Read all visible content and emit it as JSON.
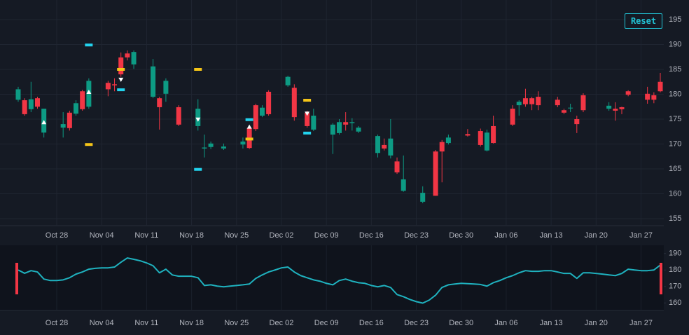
{
  "controls": {
    "reset": "Reset"
  },
  "chart_data": {
    "type": "candlestick",
    "x": [
      "Oct 22",
      "Oct 23",
      "Oct 24",
      "Oct 25",
      "Oct 26",
      "Oct 27",
      "Oct 28",
      "Oct 29",
      "Oct 30",
      "Oct 31",
      "Nov 01",
      "Nov 02",
      "Nov 03",
      "Nov 04",
      "Nov 05",
      "Nov 06",
      "Nov 07",
      "Nov 08",
      "Nov 09",
      "Nov 10",
      "Nov 11",
      "Nov 12",
      "Nov 13",
      "Nov 14",
      "Nov 15",
      "Nov 16",
      "Nov 17",
      "Nov 18",
      "Nov 19",
      "Nov 20",
      "Nov 21",
      "Nov 22",
      "Nov 23",
      "Nov 24",
      "Nov 25",
      "Nov 26",
      "Nov 27",
      "Nov 28",
      "Nov 29",
      "Nov 30",
      "Dec 01",
      "Dec 02",
      "Dec 03",
      "Dec 04",
      "Dec 05",
      "Dec 06",
      "Dec 07",
      "Dec 08",
      "Dec 09",
      "Dec 10",
      "Dec 11",
      "Dec 12",
      "Dec 13",
      "Dec 14",
      "Dec 15",
      "Dec 16",
      "Dec 17",
      "Dec 18",
      "Dec 19",
      "Dec 20",
      "Dec 21",
      "Dec 22",
      "Dec 23",
      "Dec 24",
      "Dec 25",
      "Dec 26",
      "Dec 27",
      "Dec 28",
      "Dec 29",
      "Dec 30",
      "Dec 31",
      "Jan 01",
      "Jan 02",
      "Jan 03",
      "Jan 04",
      "Jan 05",
      "Jan 06",
      "Jan 07",
      "Jan 08",
      "Jan 09",
      "Jan 10",
      "Jan 11",
      "Jan 12",
      "Jan 13",
      "Jan 14",
      "Jan 15",
      "Jan 16",
      "Jan 17",
      "Jan 18",
      "Jan 19",
      "Jan 20",
      "Jan 21",
      "Jan 22",
      "Jan 23",
      "Jan 24",
      "Jan 25",
      "Jan 26",
      "Jan 27",
      "Jan 28",
      "Jan 29",
      "Jan 30"
    ],
    "open": [
      178.9,
      178.8,
      177.0,
      179.2,
      172.3,
      null,
      null,
      173.3,
      176.3,
      176.1,
      180.6,
      177.5,
      null,
      null,
      182.3,
      182.0,
      187.4,
      188.2,
      186.0,
      null,
      null,
      179.5,
      179.2,
      180.1,
      null,
      177.4,
      null,
      null,
      173.6,
      169.1,
      169.4,
      null,
      169.1,
      null,
      null,
      169.9,
      173.2,
      177.8,
      175.7,
      180.5,
      null,
      null,
      181.8,
      181.3,
      null,
      176.3,
      172.9,
      null,
      null,
      171.9,
      172.2,
      174.4,
      174.2,
      172.5,
      null,
      null,
      168.2,
      169.8,
      167.7,
      166.5,
      160.6,
      null,
      null,
      158.4,
      null,
      168.5,
      170.4,
      170.2,
      null,
      null,
      172.0,
      null,
      172.6,
      168.7,
      173.6,
      null,
      null,
      177.1,
      177.8,
      179.2,
      179.2,
      179.5,
      null,
      null,
      178.9,
      176.8,
      177.2,
      175.0,
      179.8,
      null,
      null,
      null,
      177.1,
      177.1,
      177.4,
      180.6,
      null,
      null,
      180.1,
      179.8,
      182.5
    ],
    "high": [
      181.5,
      179.2,
      182.5,
      179.5,
      177.1,
      null,
      null,
      176.4,
      176.7,
      178.8,
      180.9,
      183.2,
      null,
      null,
      182.7,
      183.2,
      188.4,
      188.8,
      188.8,
      null,
      null,
      187.1,
      179.5,
      183.2,
      null,
      177.8,
      null,
      null,
      179.0,
      171.9,
      170.5,
      null,
      170.1,
      null,
      null,
      171.3,
      173.6,
      178.1,
      177.8,
      180.8,
      null,
      null,
      183.7,
      182.0,
      null,
      176.7,
      177.1,
      null,
      null,
      174.2,
      175.0,
      176.4,
      175.2,
      173.6,
      null,
      null,
      171.9,
      171.1,
      175.0,
      167.3,
      167.7,
      null,
      null,
      161.5,
      null,
      168.8,
      170.8,
      171.9,
      null,
      null,
      173.0,
      null,
      173.1,
      172.9,
      175.7,
      null,
      null,
      177.8,
      178.8,
      181.1,
      179.5,
      180.6,
      null,
      null,
      179.5,
      177.1,
      178.1,
      175.7,
      180.2,
      null,
      null,
      null,
      178.4,
      178.4,
      177.5,
      180.8,
      null,
      null,
      181.5,
      180.4,
      184.3
    ],
    "low": [
      178.5,
      175.7,
      176.4,
      177.1,
      171.3,
      null,
      null,
      171.3,
      172.7,
      175.7,
      176.7,
      177.1,
      null,
      null,
      179.6,
      180.6,
      183.5,
      186.8,
      185.1,
      null,
      null,
      179.2,
      172.9,
      178.5,
      null,
      173.6,
      null,
      null,
      172.7,
      167.3,
      169.0,
      null,
      168.8,
      null,
      null,
      169.1,
      169.0,
      172.6,
      175.4,
      175.7,
      null,
      null,
      181.5,
      174.7,
      null,
      173.3,
      172.6,
      null,
      null,
      168.0,
      171.9,
      172.7,
      172.7,
      172.2,
      null,
      null,
      167.3,
      168.7,
      167.1,
      164.0,
      160.4,
      null,
      null,
      158.1,
      null,
      159.6,
      162.3,
      169.9,
      null,
      null,
      171.5,
      null,
      169.5,
      168.5,
      170.1,
      null,
      null,
      173.6,
      175.7,
      177.5,
      176.8,
      176.8,
      null,
      null,
      177.4,
      176.0,
      176.4,
      172.2,
      176.4,
      null,
      null,
      null,
      176.7,
      174.7,
      176.0,
      179.6,
      null,
      null,
      178.1,
      178.2,
      180.4
    ],
    "close": [
      181.0,
      176.0,
      179.0,
      177.5,
      177.1,
      null,
      null,
      174.0,
      173.2,
      178.2,
      177.0,
      182.7,
      null,
      null,
      181.0,
      181.8,
      184.0,
      187.4,
      188.5,
      null,
      null,
      185.6,
      177.4,
      182.7,
      null,
      173.9,
      null,
      null,
      177.1,
      169.3,
      170.1,
      null,
      169.5,
      null,
      null,
      170.5,
      169.2,
      173.0,
      177.3,
      176.0,
      null,
      null,
      183.5,
      175.4,
      null,
      173.6,
      175.7,
      null,
      null,
      173.9,
      174.4,
      173.9,
      174.4,
      173.3,
      null,
      null,
      171.6,
      169.1,
      171.1,
      164.3,
      162.9,
      null,
      null,
      160.2,
      null,
      159.6,
      168.5,
      171.3,
      null,
      null,
      171.7,
      null,
      169.8,
      172.3,
      170.2,
      null,
      null,
      173.9,
      178.5,
      178.0,
      178.0,
      177.8,
      null,
      null,
      177.8,
      176.3,
      177.3,
      174.0,
      176.8,
      null,
      null,
      null,
      177.7,
      176.7,
      177.0,
      179.9,
      null,
      null,
      178.9,
      178.9,
      180.6
    ],
    "up_color": "#0d9b84",
    "down_color": "#f23645",
    "ylim": [
      155,
      195
    ],
    "yticks": [
      155,
      160,
      165,
      170,
      175,
      180,
      185,
      190,
      195
    ],
    "xticks": [
      "Oct 28",
      "Nov 04",
      "Nov 11",
      "Nov 18",
      "Nov 25",
      "Dec 02",
      "Dec 09",
      "Dec 16",
      "Dec 23",
      "Dec 30",
      "Jan 06",
      "Jan 13",
      "Jan 20",
      "Jan 27"
    ],
    "grid": true,
    "levels": [
      {
        "x": "Nov 02",
        "value": 189.9,
        "color": "#22d3ee"
      },
      {
        "x": "Nov 02",
        "value": 169.9,
        "color": "#f5c518"
      },
      {
        "x": "Nov 07",
        "value": 180.9,
        "color": "#22d3ee"
      },
      {
        "x": "Nov 07",
        "value": 185.0,
        "color": "#f5c518"
      },
      {
        "x": "Nov 19",
        "value": 185.0,
        "color": "#f5c518"
      },
      {
        "x": "Nov 19",
        "value": 164.9,
        "color": "#22d3ee"
      },
      {
        "x": "Nov 27",
        "value": 174.9,
        "color": "#22d3ee"
      },
      {
        "x": "Nov 27",
        "value": 171.0,
        "color": "#f5c518"
      },
      {
        "x": "Dec 06",
        "value": 178.8,
        "color": "#f5c518"
      },
      {
        "x": "Dec 06",
        "value": 172.2,
        "color": "#22d3ee"
      }
    ],
    "signals": [
      {
        "x": "Oct 26",
        "value": 174.4,
        "direction": "up"
      },
      {
        "x": "Nov 02",
        "value": 180.5,
        "direction": "up"
      },
      {
        "x": "Nov 07",
        "value": 182.9,
        "direction": "down"
      },
      {
        "x": "Nov 19",
        "value": 174.9,
        "direction": "down"
      },
      {
        "x": "Nov 27",
        "value": 173.5,
        "direction": "up"
      },
      {
        "x": "Dec 06",
        "value": 176.1,
        "direction": "down"
      }
    ],
    "navigator": {
      "color": "#1fb2bf",
      "handle_color": "#f23645",
      "ylim": [
        155,
        195
      ],
      "yticks": [
        160,
        170,
        180,
        190
      ],
      "values": [
        180.0,
        178.0,
        179.6,
        178.8,
        174.5,
        173.6,
        173.6,
        174.0,
        175.3,
        177.5,
        178.8,
        180.5,
        181.0,
        181.3,
        181.3,
        181.8,
        184.7,
        187.3,
        186.5,
        185.6,
        184.3,
        182.6,
        178.3,
        180.5,
        177.0,
        176.2,
        176.2,
        176.2,
        175.3,
        170.6,
        171.0,
        170.2,
        169.8,
        170.2,
        170.6,
        171.0,
        171.5,
        174.9,
        177.0,
        178.8,
        180.0,
        181.3,
        181.8,
        178.8,
        176.6,
        175.3,
        174.0,
        173.2,
        171.9,
        171.0,
        173.6,
        174.5,
        173.2,
        172.3,
        171.9,
        170.6,
        169.8,
        170.6,
        169.4,
        165.1,
        163.8,
        162.1,
        160.8,
        159.9,
        161.7,
        164.7,
        169.4,
        171.0,
        171.5,
        171.9,
        171.7,
        171.5,
        171.2,
        170.2,
        172.3,
        173.6,
        175.3,
        176.6,
        178.3,
        179.6,
        179.2,
        179.2,
        179.6,
        179.6,
        178.8,
        177.9,
        177.9,
        174.9,
        178.3,
        178.3,
        177.9,
        177.5,
        177.0,
        176.6,
        177.9,
        180.5,
        180.0,
        179.6,
        179.6,
        180.0,
        183.0
      ]
    }
  }
}
